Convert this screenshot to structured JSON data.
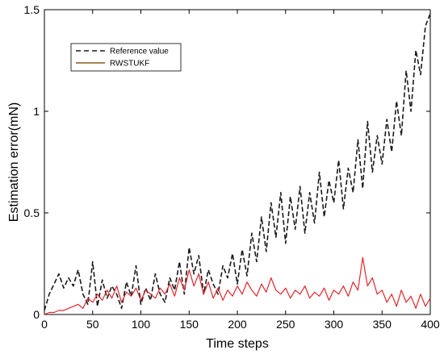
{
  "chart_data": {
    "type": "line",
    "xlabel": "Time steps",
    "ylabel": "Estimation error(mN)",
    "xlim": [
      0,
      400
    ],
    "ylim": [
      0,
      1.5
    ],
    "xticks": [
      "0",
      "50",
      "100",
      "150",
      "200",
      "250",
      "300",
      "350",
      "400"
    ],
    "yticks": [
      "0",
      "0.5",
      "1",
      "1.5"
    ],
    "grid": false,
    "legend_position": "top-left",
    "series": [
      {
        "name": "Reference value",
        "style": "dashed",
        "color": "#1a1a1a",
        "x": [
          0,
          5,
          10,
          15,
          20,
          25,
          30,
          35,
          40,
          45,
          50,
          55,
          60,
          65,
          70,
          75,
          80,
          85,
          90,
          95,
          100,
          105,
          110,
          115,
          120,
          125,
          130,
          135,
          140,
          145,
          150,
          155,
          160,
          165,
          170,
          175,
          180,
          185,
          190,
          195,
          200,
          205,
          210,
          215,
          220,
          225,
          230,
          235,
          240,
          245,
          250,
          255,
          260,
          265,
          270,
          275,
          280,
          285,
          290,
          295,
          300,
          305,
          310,
          315,
          320,
          325,
          330,
          335,
          340,
          345,
          350,
          355,
          360,
          365,
          370,
          375,
          380,
          385,
          390,
          395,
          400
        ],
        "y": [
          0.02,
          0.1,
          0.15,
          0.2,
          0.13,
          0.18,
          0.14,
          0.22,
          0.1,
          0.05,
          0.26,
          0.04,
          0.17,
          0.08,
          0.14,
          0.1,
          0.03,
          0.16,
          0.09,
          0.24,
          0.05,
          0.13,
          0.07,
          0.2,
          0.1,
          0.06,
          0.18,
          0.12,
          0.26,
          0.1,
          0.33,
          0.2,
          0.29,
          0.1,
          0.22,
          0.15,
          0.1,
          0.24,
          0.18,
          0.3,
          0.15,
          0.32,
          0.19,
          0.4,
          0.26,
          0.48,
          0.31,
          0.55,
          0.38,
          0.6,
          0.35,
          0.58,
          0.42,
          0.63,
          0.4,
          0.6,
          0.45,
          0.7,
          0.48,
          0.66,
          0.55,
          0.76,
          0.52,
          0.72,
          0.6,
          0.86,
          0.62,
          0.95,
          0.7,
          0.88,
          0.74,
          0.96,
          0.8,
          1.05,
          0.88,
          1.2,
          1.0,
          1.3,
          1.18,
          1.42,
          1.48
        ]
      },
      {
        "name": "RWSTUKF",
        "style": "solid",
        "color": "#e0262c",
        "x": [
          0,
          5,
          10,
          15,
          20,
          25,
          30,
          35,
          40,
          45,
          50,
          55,
          60,
          65,
          70,
          75,
          80,
          85,
          90,
          95,
          100,
          105,
          110,
          115,
          120,
          125,
          130,
          135,
          140,
          145,
          150,
          155,
          160,
          165,
          170,
          175,
          180,
          185,
          190,
          195,
          200,
          205,
          210,
          215,
          220,
          225,
          230,
          235,
          240,
          245,
          250,
          255,
          260,
          265,
          270,
          275,
          280,
          285,
          290,
          295,
          300,
          305,
          310,
          315,
          320,
          325,
          330,
          335,
          340,
          345,
          350,
          355,
          360,
          365,
          370,
          375,
          380,
          385,
          390,
          395,
          400
        ],
        "y": [
          0.0,
          0.01,
          0.01,
          0.02,
          0.02,
          0.03,
          0.04,
          0.05,
          0.03,
          0.08,
          0.06,
          0.1,
          0.07,
          0.12,
          0.08,
          0.14,
          0.06,
          0.11,
          0.09,
          0.13,
          0.07,
          0.12,
          0.1,
          0.08,
          0.13,
          0.1,
          0.15,
          0.09,
          0.18,
          0.12,
          0.22,
          0.14,
          0.2,
          0.1,
          0.16,
          0.08,
          0.13,
          0.07,
          0.12,
          0.09,
          0.14,
          0.1,
          0.16,
          0.12,
          0.09,
          0.15,
          0.11,
          0.18,
          0.12,
          0.1,
          0.13,
          0.08,
          0.12,
          0.1,
          0.14,
          0.08,
          0.11,
          0.09,
          0.13,
          0.07,
          0.12,
          0.1,
          0.14,
          0.09,
          0.16,
          0.12,
          0.28,
          0.14,
          0.18,
          0.1,
          0.12,
          0.06,
          0.1,
          0.04,
          0.12,
          0.06,
          0.09,
          0.03,
          0.1,
          0.04,
          0.08
        ]
      }
    ]
  }
}
